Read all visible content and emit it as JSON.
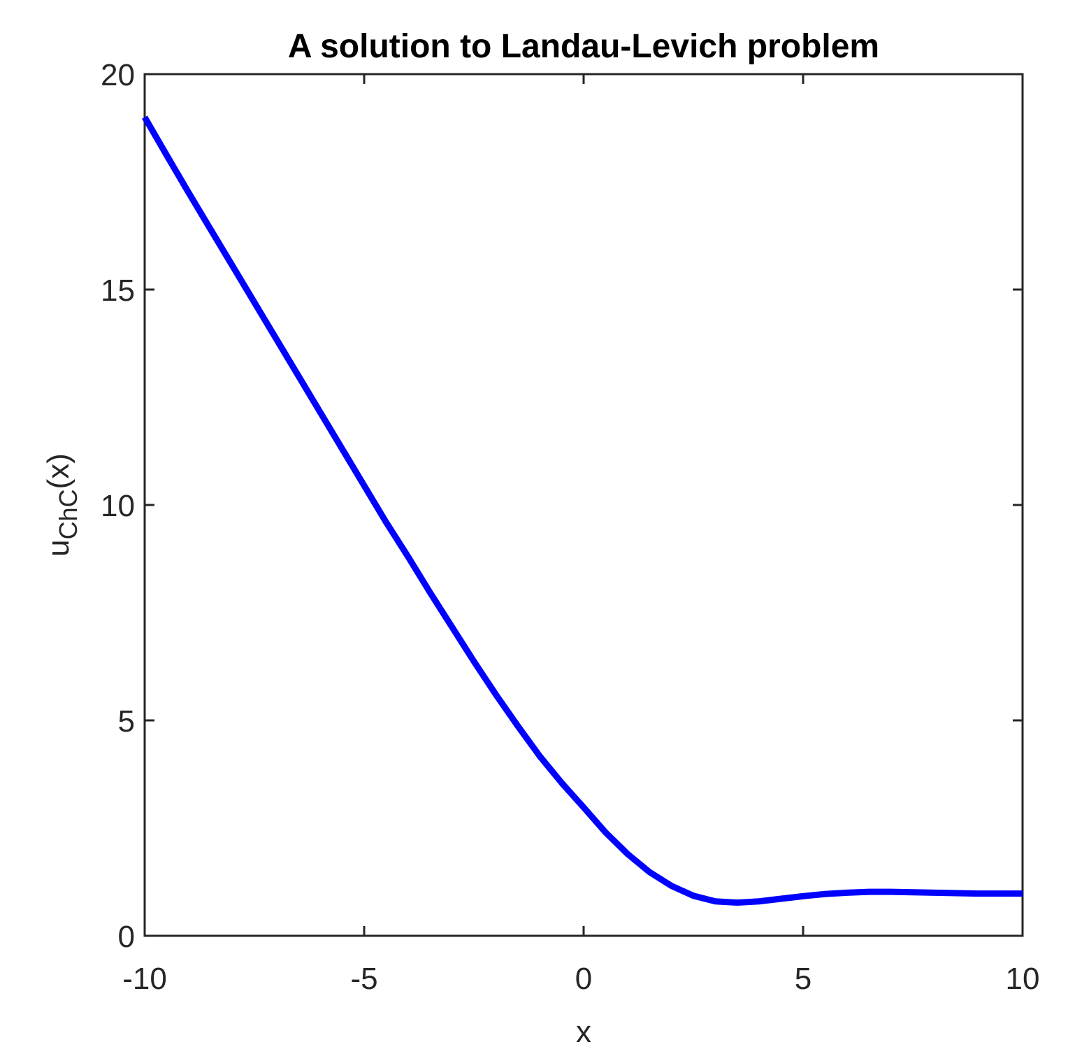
{
  "chart_data": {
    "type": "line",
    "title": "A solution to Landau-Levich problem",
    "xlabel": "x",
    "ylabel": {
      "base": "u",
      "subscript": "ChC",
      "suffix": "(x)"
    },
    "x": [
      -10,
      -9.5,
      -9,
      -8.5,
      -8,
      -7.5,
      -7,
      -6.5,
      -6,
      -5.5,
      -5,
      -4.5,
      -4,
      -3.5,
      -3,
      -2.5,
      -2,
      -1.5,
      -1,
      -0.5,
      0,
      0.5,
      1,
      1.5,
      2,
      2.5,
      3,
      3.5,
      4,
      4.5,
      5,
      5.5,
      6,
      6.5,
      7,
      7.5,
      8,
      8.5,
      9,
      9.5,
      10
    ],
    "series": [
      {
        "color": "#0000ff",
        "values": [
          19.0,
          18.12,
          17.25,
          16.4,
          15.55,
          14.7,
          13.85,
          13.0,
          12.15,
          11.3,
          10.45,
          9.6,
          8.8,
          7.97,
          7.17,
          6.37,
          5.6,
          4.87,
          4.17,
          3.55,
          2.98,
          2.4,
          1.9,
          1.48,
          1.16,
          0.93,
          0.8,
          0.77,
          0.8,
          0.86,
          0.92,
          0.97,
          1.0,
          1.02,
          1.02,
          1.01,
          1.0,
          0.99,
          0.98,
          0.98,
          0.98
        ]
      }
    ],
    "xlim": [
      -10,
      10
    ],
    "ylim": [
      0,
      20
    ],
    "xticks": [
      -10,
      -5,
      0,
      5,
      10
    ],
    "yticks": [
      0,
      5,
      10,
      15,
      20
    ],
    "grid": false
  }
}
